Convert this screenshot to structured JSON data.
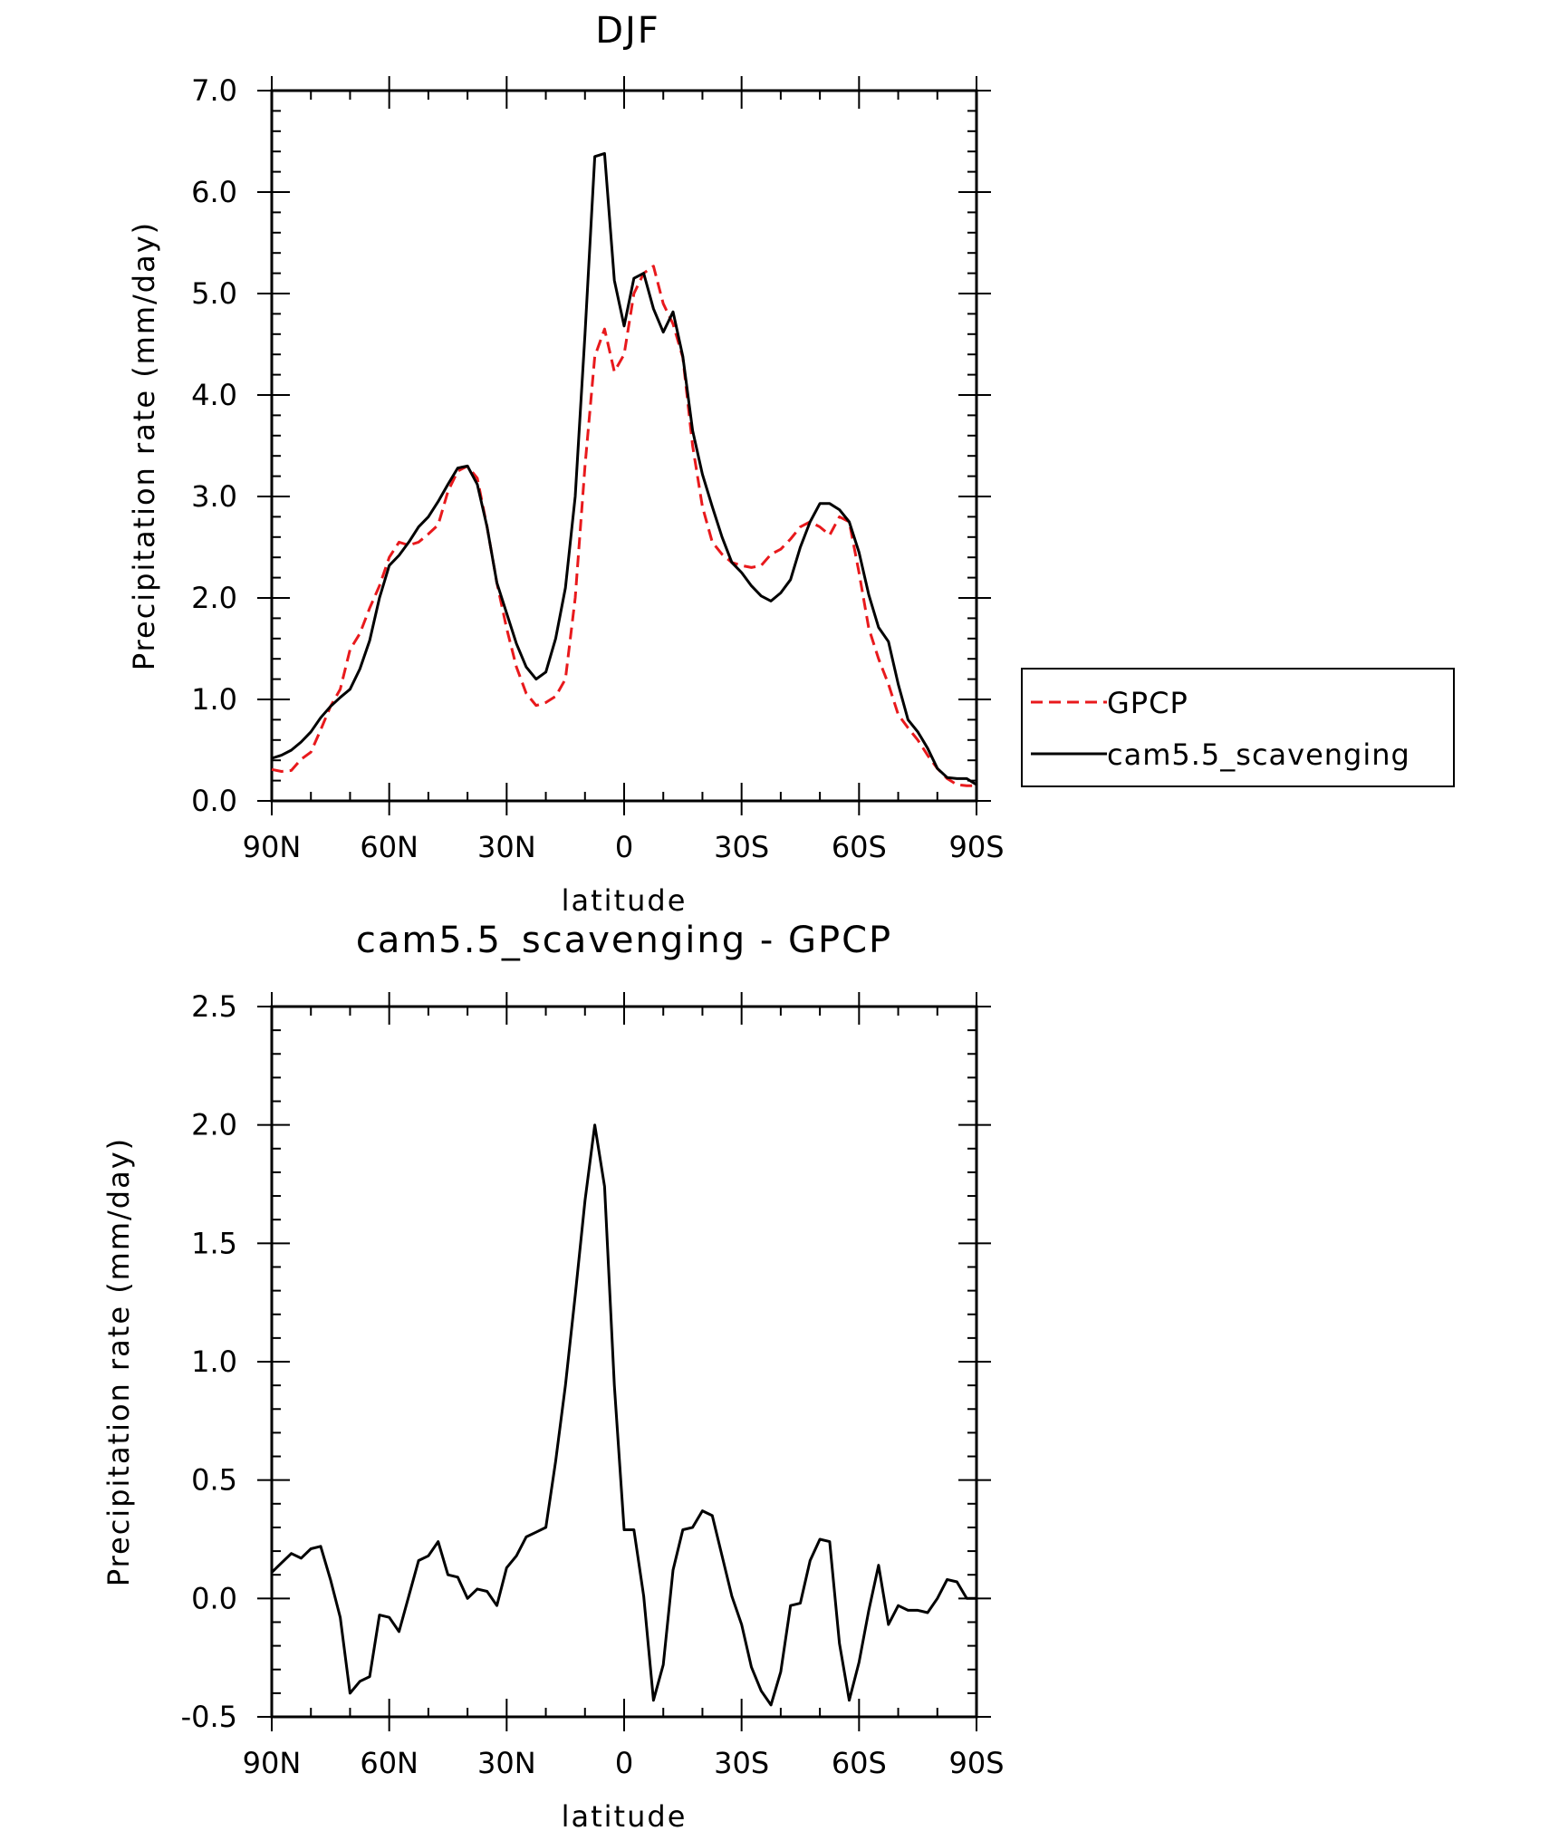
{
  "chart_data": [
    {
      "type": "line",
      "title": "DJF",
      "xlabel": "latitude",
      "ylabel": "Precipitation rate (mm/day)",
      "x_tick_labels": [
        "90N",
        "60N",
        "30N",
        "0",
        "30S",
        "60S",
        "90S"
      ],
      "y_tick_labels": [
        "0.0",
        "1.0",
        "2.0",
        "3.0",
        "4.0",
        "5.0",
        "6.0",
        "7.0"
      ],
      "xlim": [
        90,
        -90
      ],
      "ylim": [
        0,
        7
      ],
      "grid": false,
      "legend": "right",
      "series": [
        {
          "name": "GPCP",
          "color": "#e8191c",
          "style": "dashed",
          "x": [
            90,
            87.5,
            85,
            82.5,
            80,
            77.5,
            75,
            72.5,
            70,
            67.5,
            65,
            62.5,
            60,
            57.5,
            55,
            52.5,
            50,
            47.5,
            45,
            42.5,
            40,
            37.5,
            35,
            32.5,
            30,
            27.5,
            25,
            22.5,
            20,
            17.5,
            15,
            12.5,
            10,
            7.5,
            5,
            2.5,
            0,
            -2.5,
            -5,
            -7.5,
            -10,
            -12.5,
            -15,
            -17.5,
            -20,
            -22.5,
            -25,
            -27.5,
            -30,
            -32.5,
            -35,
            -37.5,
            -40,
            -42.5,
            -45,
            -47.5,
            -50,
            -52.5,
            -55,
            -57.5,
            -60,
            -62.5,
            -65,
            -67.5,
            -70,
            -72.5,
            -75,
            -77.5,
            -80,
            -82.5,
            -85,
            -87.5,
            -90
          ],
          "y": [
            0.31,
            0.29,
            0.3,
            0.41,
            0.48,
            0.7,
            0.93,
            1.1,
            1.49,
            1.65,
            1.9,
            2.12,
            2.4,
            2.55,
            2.52,
            2.55,
            2.63,
            2.72,
            3.05,
            3.25,
            3.3,
            3.18,
            2.7,
            2.15,
            1.7,
            1.32,
            1.06,
            0.94,
            0.97,
            1.03,
            1.2,
            2.0,
            3.3,
            4.38,
            4.65,
            4.23,
            4.4,
            5.0,
            5.2,
            5.27,
            4.9,
            4.7,
            4.37,
            3.5,
            2.9,
            2.55,
            2.43,
            2.35,
            2.32,
            2.3,
            2.32,
            2.43,
            2.48,
            2.58,
            2.7,
            2.75,
            2.7,
            2.62,
            2.8,
            2.75,
            2.25,
            1.7,
            1.4,
            1.15,
            0.85,
            0.72,
            0.6,
            0.45,
            0.32,
            0.22,
            0.16,
            0.15,
            0.15
          ]
        },
        {
          "name": "cam5.5_scavenging",
          "color": "#000000",
          "style": "solid",
          "x": [
            90,
            87.5,
            85,
            82.5,
            80,
            77.5,
            75,
            72.5,
            70,
            67.5,
            65,
            62.5,
            60,
            57.5,
            55,
            52.5,
            50,
            47.5,
            45,
            42.5,
            40,
            37.5,
            35,
            32.5,
            30,
            27.5,
            25,
            22.5,
            20,
            17.5,
            15,
            12.5,
            10,
            7.5,
            5,
            2.5,
            0,
            -2.5,
            -5,
            -7.5,
            -10,
            -12.5,
            -15,
            -17.5,
            -20,
            -22.5,
            -25,
            -27.5,
            -30,
            -32.5,
            -35,
            -37.5,
            -40,
            -42.5,
            -45,
            -47.5,
            -50,
            -52.5,
            -55,
            -57.5,
            -60,
            -62.5,
            -65,
            -67.5,
            -70,
            -72.5,
            -75,
            -77.5,
            -80,
            -82.5,
            -85,
            -87.5,
            -90
          ],
          "y": [
            0.42,
            0.45,
            0.5,
            0.58,
            0.68,
            0.82,
            0.93,
            1.02,
            1.1,
            1.3,
            1.58,
            2.0,
            2.32,
            2.42,
            2.55,
            2.7,
            2.8,
            2.95,
            3.12,
            3.28,
            3.3,
            3.12,
            2.7,
            2.15,
            1.85,
            1.55,
            1.32,
            1.2,
            1.27,
            1.6,
            2.1,
            3.0,
            4.6,
            6.35,
            6.38,
            5.13,
            4.68,
            5.15,
            5.2,
            4.85,
            4.62,
            4.82,
            4.38,
            3.65,
            3.22,
            2.9,
            2.6,
            2.35,
            2.25,
            2.12,
            2.02,
            1.97,
            2.05,
            2.18,
            2.5,
            2.75,
            2.93,
            2.93,
            2.87,
            2.75,
            2.45,
            2.03,
            1.71,
            1.57,
            1.15,
            0.8,
            0.68,
            0.52,
            0.32,
            0.23,
            0.22,
            0.22,
            0.16
          ]
        }
      ]
    },
    {
      "type": "line",
      "title": "cam5.5_scavenging - GPCP",
      "xlabel": "latitude",
      "ylabel": "Precipitation rate (mm/day)",
      "x_tick_labels": [
        "90N",
        "60N",
        "30N",
        "0",
        "30S",
        "60S",
        "90S"
      ],
      "y_tick_labels": [
        "-0.5",
        "0.0",
        "0.5",
        "1.0",
        "1.5",
        "2.0",
        "2.5"
      ],
      "xlim": [
        90,
        -90
      ],
      "ylim": [
        -0.5,
        2.5
      ],
      "grid": false,
      "legend": "none",
      "series": [
        {
          "color": "#000000",
          "style": "solid",
          "x": [
            90,
            87.5,
            85,
            82.5,
            80,
            77.5,
            75,
            72.5,
            70,
            67.5,
            65,
            62.5,
            60,
            57.5,
            55,
            52.5,
            50,
            47.5,
            45,
            42.5,
            40,
            37.5,
            35,
            32.5,
            30,
            27.5,
            25,
            22.5,
            20,
            17.5,
            15,
            12.5,
            10,
            7.5,
            5,
            2.5,
            0,
            -2.5,
            -5,
            -7.5,
            -10,
            -12.5,
            -15,
            -17.5,
            -20,
            -22.5,
            -25,
            -27.5,
            -30,
            -32.5,
            -35,
            -37.5,
            -40,
            -42.5,
            -45,
            -47.5,
            -50,
            -52.5,
            -55,
            -57.5,
            -60,
            -62.5,
            -65,
            -67.5,
            -70,
            -72.5,
            -75,
            -77.5,
            -80,
            -82.5,
            -85,
            -87.5,
            -90
          ],
          "y": [
            0.11,
            0.15,
            0.19,
            0.17,
            0.21,
            0.22,
            0.08,
            -0.08,
            -0.4,
            -0.35,
            -0.33,
            -0.07,
            -0.08,
            -0.14,
            0.01,
            0.16,
            0.18,
            0.24,
            0.1,
            0.09,
            0.0,
            0.04,
            0.03,
            -0.03,
            0.13,
            0.18,
            0.26,
            0.28,
            0.3,
            0.58,
            0.9,
            1.28,
            1.68,
            2.0,
            1.74,
            0.9,
            0.29,
            0.29,
            0.01,
            -0.43,
            -0.28,
            0.12,
            0.29,
            0.3,
            0.37,
            0.35,
            0.18,
            0.01,
            -0.11,
            -0.29,
            -0.39,
            -0.45,
            -0.31,
            -0.03,
            -0.02,
            0.16,
            0.25,
            0.24,
            -0.19,
            -0.43,
            -0.27,
            -0.05,
            0.14,
            -0.11,
            -0.03,
            -0.05,
            -0.05,
            -0.06,
            0.0,
            0.08,
            0.07,
            0.0,
            0.0
          ]
        }
      ]
    }
  ]
}
